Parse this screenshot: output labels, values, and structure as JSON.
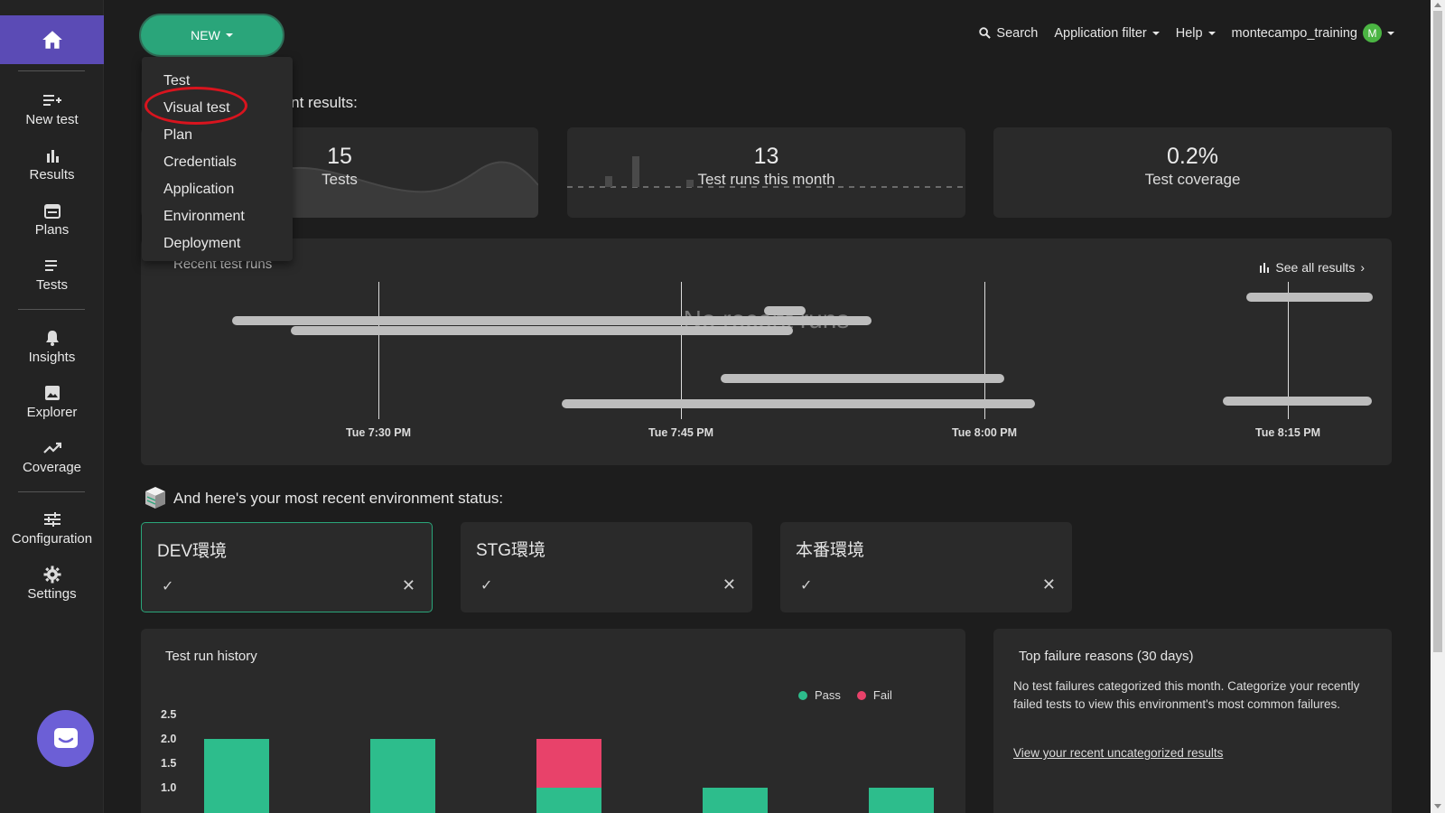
{
  "sidebar": {
    "items": [
      {
        "label": "New test",
        "icon": "new-test-icon"
      },
      {
        "label": "Results",
        "icon": "bar-chart-icon"
      },
      {
        "label": "Plans",
        "icon": "calendar-icon"
      },
      {
        "label": "Tests",
        "icon": "list-icon"
      },
      {
        "label": "Insights",
        "icon": "bell-icon"
      },
      {
        "label": "Explorer",
        "icon": "image-icon"
      },
      {
        "label": "Coverage",
        "icon": "trend-icon"
      },
      {
        "label": "Configuration",
        "icon": "sliders-icon"
      },
      {
        "label": "Settings",
        "icon": "gear-icon"
      }
    ]
  },
  "topbar": {
    "new_label": "NEW",
    "search_label": "Search",
    "app_filter_label": "Application filter",
    "help_label": "Help",
    "username": "montecampo_training",
    "avatar_initial": "M"
  },
  "new_menu": {
    "items": [
      "Test",
      "Visual test",
      "Plan",
      "Credentials",
      "Application",
      "Environment",
      "Deployment"
    ],
    "highlighted": "Visual test"
  },
  "intro_text": "rview of your recent results:",
  "stats": [
    {
      "value": "15",
      "label": "Tests"
    },
    {
      "value": "13",
      "label": "Test runs this month"
    },
    {
      "value": "0.2%",
      "label": "Test coverage"
    }
  ],
  "recent_runs": {
    "title": "Recent test runs",
    "see_all": "See all results",
    "empty_text": "No recent runs",
    "ticks": [
      "Tue 7:30 PM",
      "Tue 7:45 PM",
      "Tue 8:00 PM",
      "Tue 8:15 PM"
    ]
  },
  "env_section": {
    "heading": "And here's your most recent environment status:",
    "envs": [
      {
        "name": "DEV環境",
        "check": "✓",
        "x": "✕"
      },
      {
        "name": "STG環境",
        "check": "✓",
        "x": "✕"
      },
      {
        "name": "本番環境",
        "check": "✓",
        "x": "✕"
      }
    ]
  },
  "history": {
    "title": "Test run history",
    "legend": [
      {
        "name": "Pass",
        "color": "#2dbd8c"
      },
      {
        "name": "Fail",
        "color": "#e8426a"
      }
    ]
  },
  "chart_data": {
    "type": "bar",
    "series": [
      {
        "name": "Pass",
        "values": [
          2,
          2,
          1,
          1,
          1
        ]
      },
      {
        "name": "Fail",
        "values": [
          0,
          0,
          1,
          0,
          0
        ]
      }
    ],
    "y_ticks": [
      "2.5",
      "2.0",
      "1.5",
      "1.0"
    ],
    "ylim": [
      0,
      2.5
    ],
    "colors": {
      "Pass": "#2dbd8c",
      "Fail": "#e8426a"
    }
  },
  "failures": {
    "title": "Top failure reasons (30 days)",
    "text": "No test failures categorized this month. Categorize your recently failed tests to view this environment's most common failures.",
    "link": "View your recent uncategorized results"
  }
}
